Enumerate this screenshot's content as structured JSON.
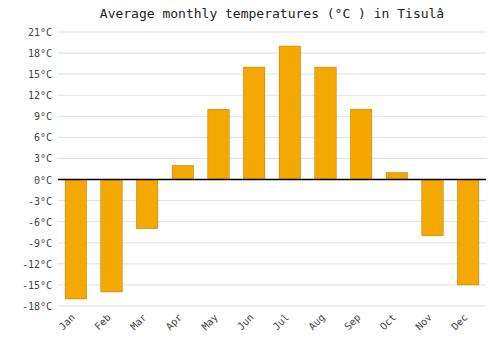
{
  "chart_data": {
    "type": "bar",
    "title": "Average monthly temperatures (°C ) in Tisulâ",
    "categories": [
      "Jan",
      "Feb",
      "Mar",
      "Apr",
      "May",
      "Jun",
      "Jul",
      "Aug",
      "Sep",
      "Oct",
      "Nov",
      "Dec"
    ],
    "values": [
      -17,
      -16,
      -7,
      2,
      10,
      16,
      19,
      16,
      10,
      1,
      -8,
      -15
    ],
    "color": "#F5A800",
    "ylim": [
      -18,
      21
    ],
    "yticks": [
      {
        "value": -18,
        "label": "-18°C"
      },
      {
        "value": -15,
        "label": "-15°C"
      },
      {
        "value": -12,
        "label": "-12°C"
      },
      {
        "value": -9,
        "label": "-9°C"
      },
      {
        "value": -6,
        "label": "-6°C"
      },
      {
        "value": -3,
        "label": "-3°C"
      },
      {
        "value": 0,
        "label": "0°C"
      },
      {
        "value": 3,
        "label": "3°C"
      },
      {
        "value": 6,
        "label": "6°C"
      },
      {
        "value": 9,
        "label": "9°C"
      },
      {
        "value": 12,
        "label": "12°C"
      },
      {
        "value": 15,
        "label": "15°C"
      },
      {
        "value": 18,
        "label": "18°C"
      },
      {
        "value": 21,
        "label": "21°C"
      }
    ],
    "grid": true
  }
}
